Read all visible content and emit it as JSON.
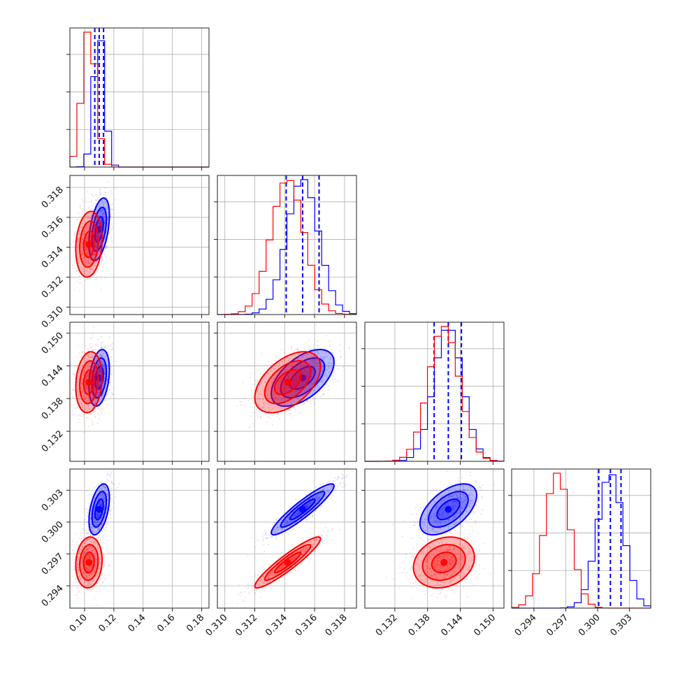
{
  "chart_data": {
    "type": "scatter",
    "title": "",
    "colors": {
      "blue": "#0000ff",
      "red": "#ff0000"
    },
    "grid": true,
    "parameters": [
      {
        "range": [
          0.09,
          0.185
        ],
        "ticks": [
          "0.10",
          "0.12",
          "0.14",
          "0.16",
          "0.18"
        ],
        "tick_values": [
          0.1,
          0.12,
          0.14,
          0.16,
          0.18
        ]
      },
      {
        "range": [
          0.3095,
          0.3188
        ],
        "ticks": [
          "0.310",
          "0.312",
          "0.314",
          "0.316",
          "0.318"
        ],
        "tick_values": [
          0.31,
          0.312,
          0.314,
          0.316,
          0.318
        ]
      },
      {
        "range": [
          0.1265,
          0.152
        ],
        "ticks": [
          "0.132",
          "0.138",
          "0.144",
          "0.150"
        ],
        "tick_values": [
          0.132,
          0.138,
          0.144,
          0.15
        ]
      },
      {
        "range": [
          0.2919,
          0.305
        ],
        "ticks": [
          "0.294",
          "0.297",
          "0.300",
          "0.303"
        ],
        "tick_values": [
          0.294,
          0.297,
          0.3,
          0.303
        ]
      }
    ],
    "series": [
      {
        "color": "blue",
        "mean": [
          0.11,
          0.3152,
          0.1418,
          0.3012
        ],
        "sd": [
          0.0035,
          0.00105,
          0.0026,
          0.0012
        ],
        "quantiles": [
          [
            0.107,
            0.11,
            0.113
          ],
          [
            0.3141,
            0.3152,
            0.3163
          ],
          [
            0.1392,
            0.1418,
            0.1442
          ],
          [
            0.3001,
            0.3012,
            0.3022
          ]
        ],
        "corr": {
          "1-0": 0.45,
          "2-0": 0.3,
          "2-1": 0.55,
          "3-0": 0.45,
          "3-1": 0.92,
          "3-2": 0.55
        }
      },
      {
        "color": "red",
        "mean": [
          0.103,
          0.3142,
          0.141,
          0.2962
        ],
        "sd": [
          0.0045,
          0.0011,
          0.0028,
          0.0012
        ],
        "quantiles": null,
        "corr": {
          "1-0": 0.15,
          "2-0": 0.15,
          "2-1": 0.5,
          "3-0": 0.1,
          "3-1": 0.93,
          "3-2": 0.2
        }
      }
    ]
  }
}
